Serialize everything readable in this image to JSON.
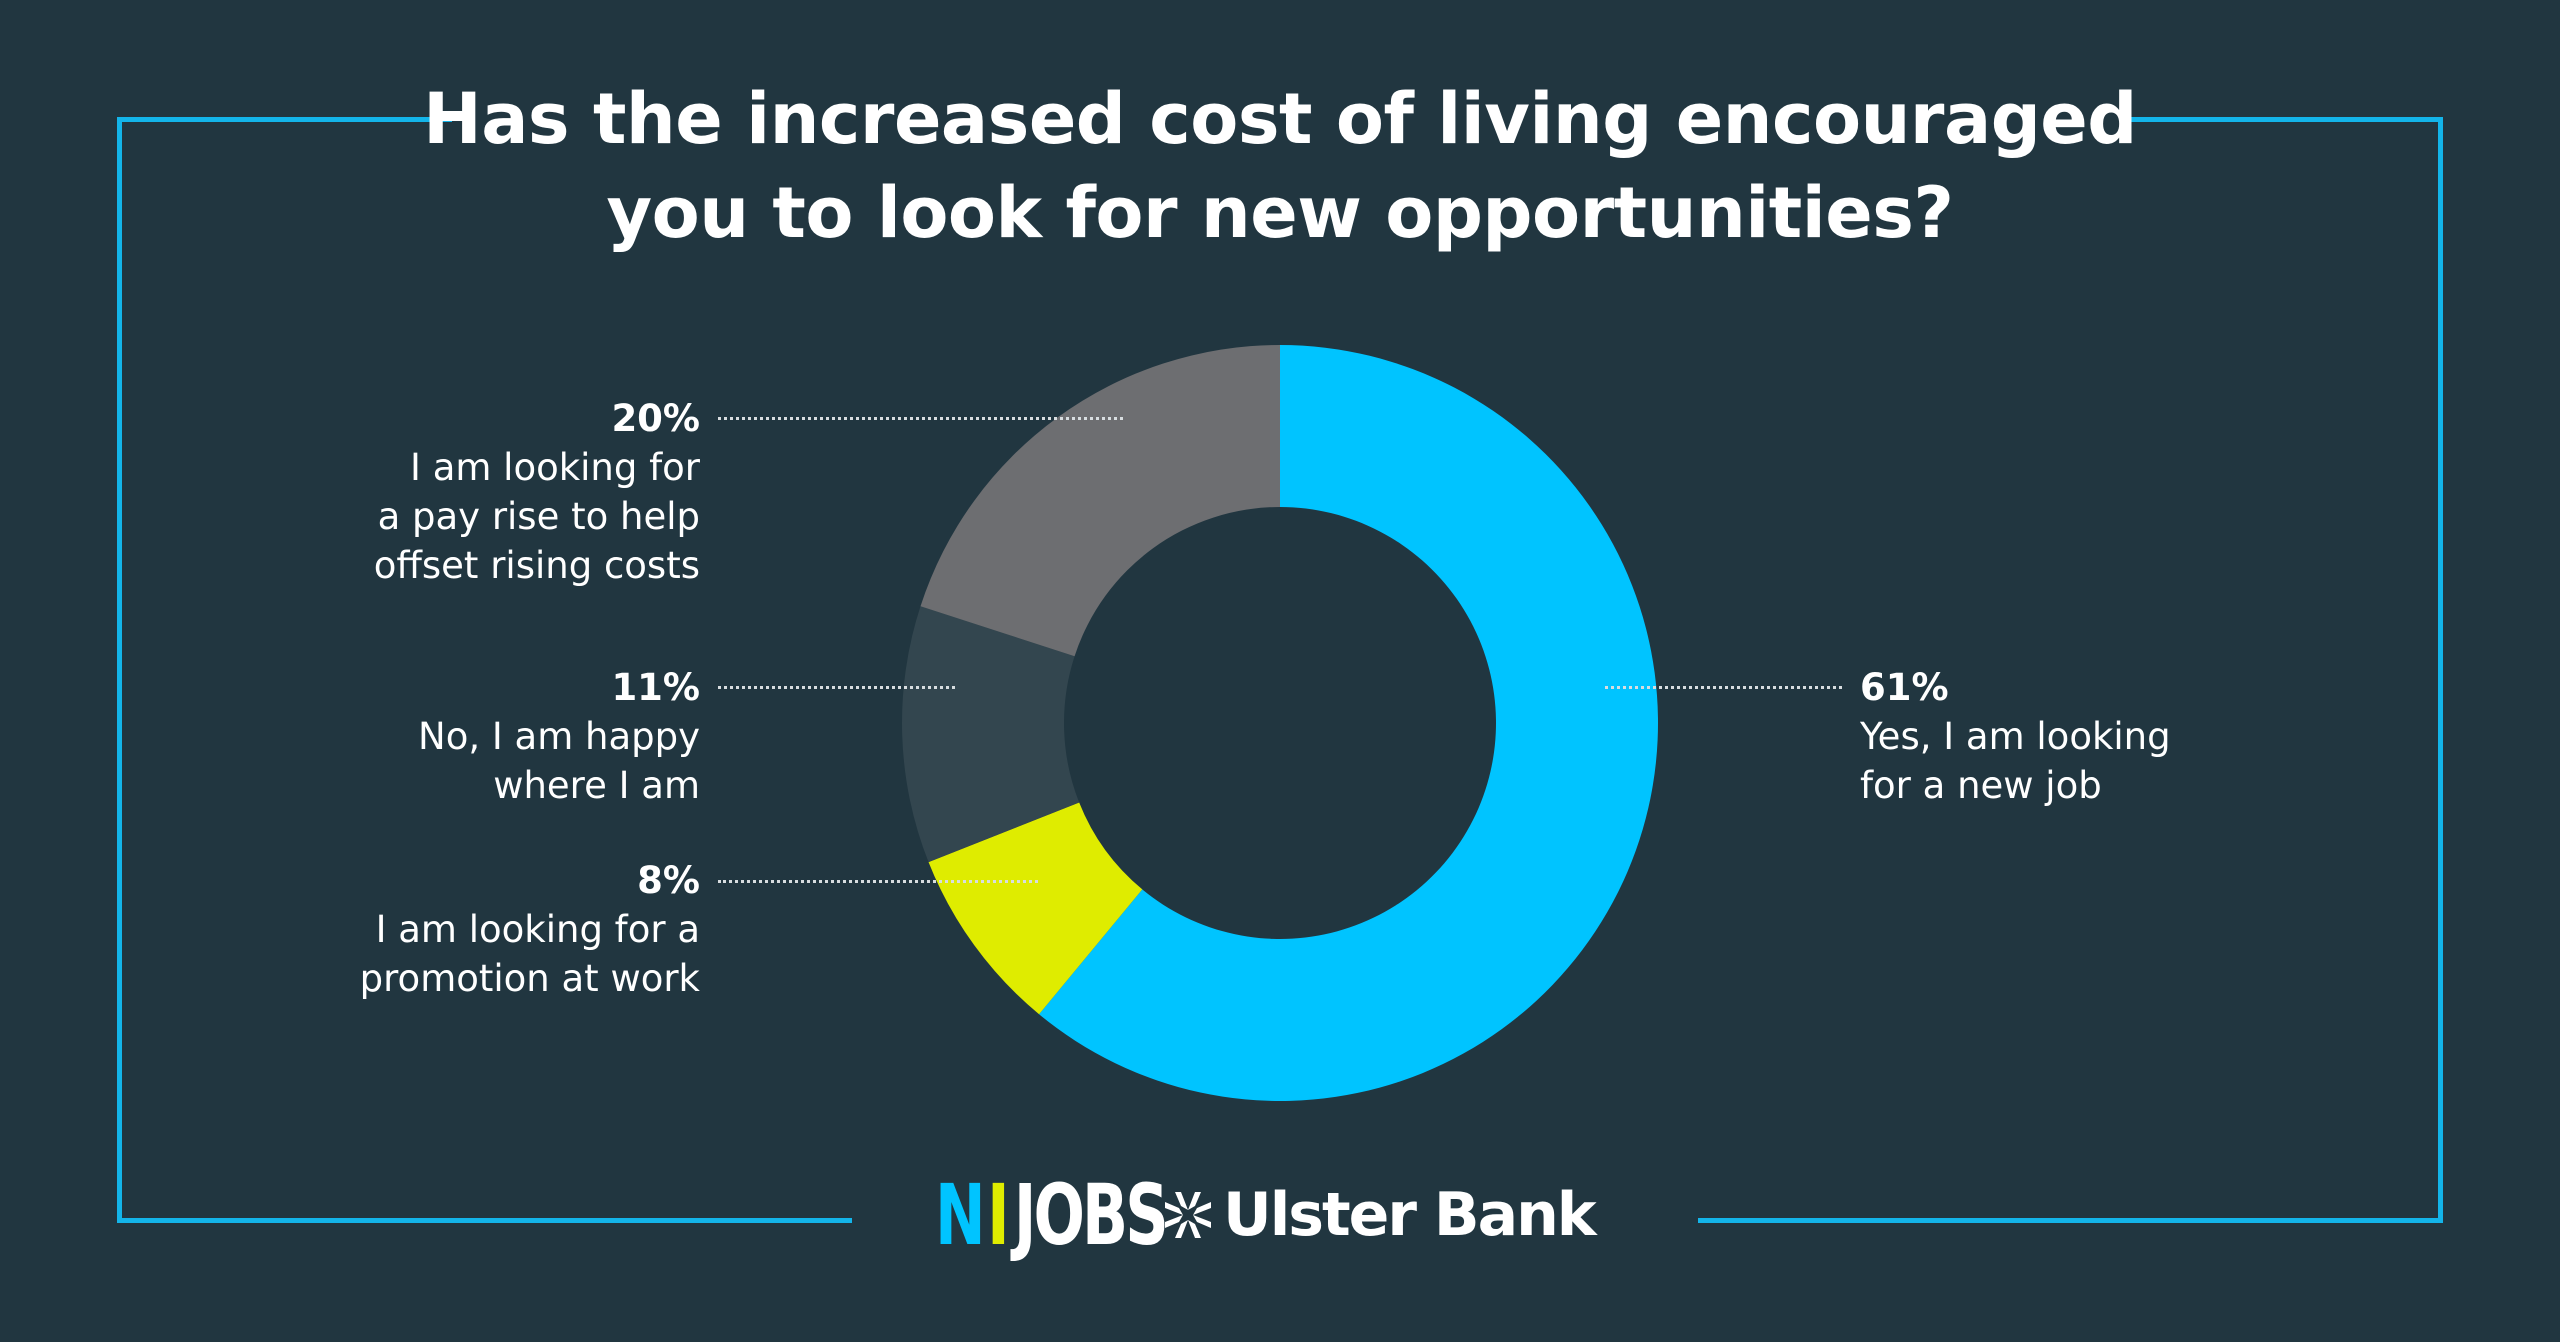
{
  "title_lines": [
    "Has the increased cost of living encouraged",
    "you to look for new opportunities?"
  ],
  "colors": {
    "background": "#213640",
    "frame": "#13b5ea",
    "blue": "#00c4ff",
    "yellow": "#dfec00",
    "dark": "#33464f",
    "gray": "#6d6e71"
  },
  "chart_data": {
    "type": "pie",
    "donut": true,
    "title": "Has the increased cost of living encouraged you to look for new opportunities?",
    "slices": [
      {
        "value": 61,
        "pct_label": "61%",
        "lines": [
          "Yes, I am looking",
          "for a new job"
        ],
        "color": "#00c4ff"
      },
      {
        "value": 8,
        "pct_label": "8%",
        "lines": [
          "I am looking for a",
          "promotion at work"
        ],
        "color": "#dfec00"
      },
      {
        "value": 11,
        "pct_label": "11%",
        "lines": [
          "No, I am happy",
          "where I am"
        ],
        "color": "#33464f"
      },
      {
        "value": 20,
        "pct_label": "20%",
        "lines": [
          "I am looking for",
          "a pay rise to help",
          "offset rising costs"
        ],
        "color": "#6d6e71"
      }
    ]
  },
  "logos": {
    "nijobs": {
      "n": "N",
      "i": "I",
      "jobs": "JOBS"
    },
    "ulster_bank": "Ulster Bank"
  }
}
